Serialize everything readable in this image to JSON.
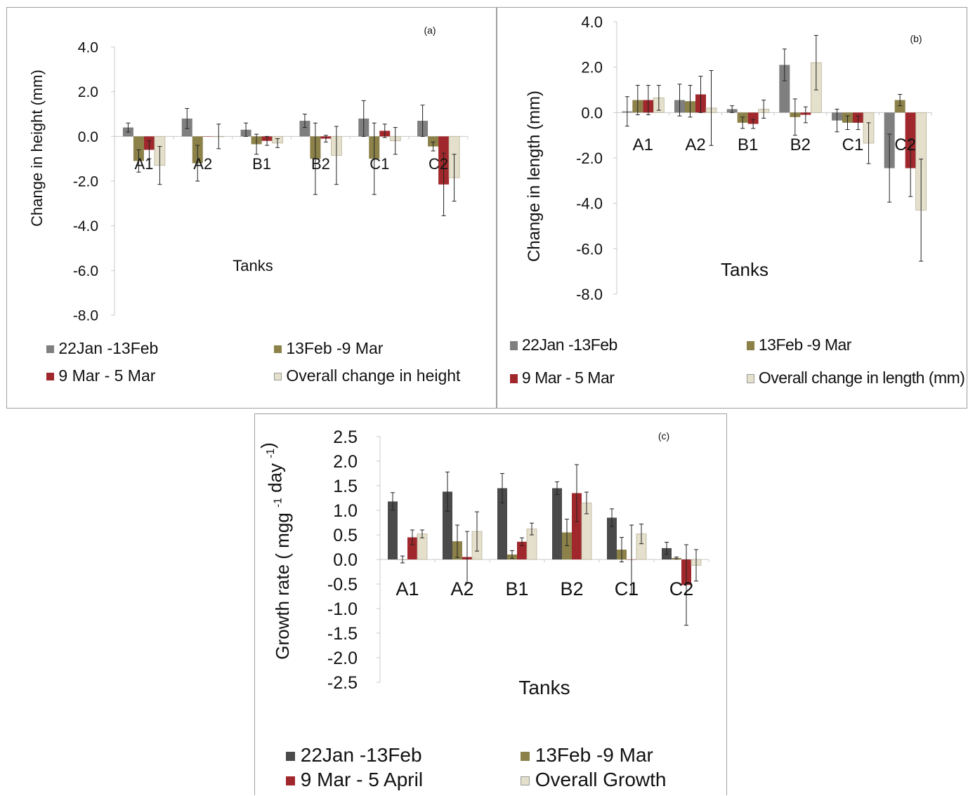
{
  "colors": {
    "s1": "#7f7f7f",
    "s2": "#8b8149",
    "s3": "#a0282c",
    "s4": "#e5e0cc",
    "s1c": "#4a4a4a"
  },
  "chart_data": [
    {
      "type": "bar",
      "panel_label": "(a)",
      "categories": [
        "A1",
        "A2",
        "B1",
        "B2",
        "C1",
        "C2"
      ],
      "ylabel": "Change in height (mm)",
      "xlabel": "Tanks",
      "ylim": [
        -8.0,
        4.0
      ],
      "yticks": [
        "4.0",
        "2.0",
        "0.0",
        "-2.0",
        "-4.0",
        "-6.0",
        "-8.0"
      ],
      "ytick_values": [
        4,
        2,
        0,
        -2,
        -4,
        -6,
        -8
      ],
      "series": [
        {
          "name": "22Jan -13Feb",
          "values": [
            0.4,
            0.8,
            0.3,
            0.7,
            0.8,
            0.7
          ],
          "errors": [
            0.2,
            0.45,
            0.3,
            0.3,
            0.8,
            0.7
          ]
        },
        {
          "name": "13Feb -9 Mar",
          "values": [
            -1.1,
            -1.2,
            -0.35,
            -1.0,
            -1.0,
            -0.45
          ],
          "errors": [
            0.5,
            0.8,
            0.45,
            1.6,
            1.6,
            0.2
          ]
        },
        {
          "name": "9 Mar - 5 Mar",
          "values": [
            -0.6,
            0.0,
            -0.2,
            -0.1,
            0.25,
            -2.15
          ],
          "errors": [
            0.4,
            0.0,
            0.2,
            0.15,
            0.3,
            1.4
          ]
        },
        {
          "name": "Overall change in height",
          "values": [
            -1.3,
            0.0,
            -0.3,
            -0.85,
            -0.2,
            -1.85
          ],
          "errors": [
            0.85,
            0.55,
            0.2,
            1.3,
            0.6,
            1.05
          ]
        }
      ],
      "legend": [
        "22Jan -13Feb",
        "13Feb -9 Mar",
        "9 Mar - 5 Mar",
        "Overall change in height"
      ]
    },
    {
      "type": "bar",
      "panel_label": "(b)",
      "categories": [
        "A1",
        "A2",
        "B1",
        "B2",
        "C1",
        "C2"
      ],
      "ylabel": "Change in length (mm)",
      "xlabel": "Tanks",
      "ylim": [
        -8.0,
        4.0
      ],
      "yticks": [
        "4.0",
        "2.0",
        "0.0",
        "-2.0",
        "-4.0",
        "-6.0",
        "-8.0"
      ],
      "ytick_values": [
        4,
        2,
        0,
        -2,
        -4,
        -6,
        -8
      ],
      "series": [
        {
          "name": "22Jan -13Feb",
          "values": [
            0.05,
            0.55,
            0.15,
            2.1,
            -0.35,
            -2.45
          ],
          "errors": [
            0.65,
            0.7,
            0.15,
            0.7,
            0.5,
            1.5
          ]
        },
        {
          "name": "13Feb -9 Mar",
          "values": [
            0.55,
            0.5,
            -0.45,
            -0.2,
            -0.45,
            0.55
          ],
          "errors": [
            0.65,
            0.7,
            0.25,
            0.8,
            0.3,
            0.25
          ]
        },
        {
          "name": "9 Mar - 5 Mar",
          "values": [
            0.55,
            0.8,
            -0.5,
            -0.1,
            -0.45,
            -2.45
          ],
          "errors": [
            0.65,
            0.8,
            0.2,
            0.35,
            0.3,
            1.25
          ]
        },
        {
          "name": "Overall change in length (mm)",
          "values": [
            0.65,
            0.2,
            0.15,
            2.2,
            -1.35,
            -4.3
          ],
          "errors": [
            0.55,
            1.65,
            0.4,
            1.2,
            0.9,
            2.25
          ]
        }
      ],
      "legend": [
        "22Jan -13Feb",
        "13Feb -9 Mar",
        "9 Mar - 5 Mar",
        "Overall change in length (mm)"
      ]
    },
    {
      "type": "bar",
      "panel_label": "(c)",
      "categories": [
        "A1",
        "A2",
        "B1",
        "B2",
        "C1",
        "C2"
      ],
      "ylabel": "Growth rate ( mgg ",
      "ylabel_sup1": "-1",
      "ylabel_mid": " day ",
      "ylabel_sup2": "-1",
      "ylabel_end": ")",
      "xlabel": "Tanks",
      "ylim": [
        -2.5,
        2.5
      ],
      "yticks": [
        "2.5",
        "2.0",
        "1.5",
        "1.0",
        "0.5",
        "0.0",
        "-0.5",
        "-1.0",
        "-1.5",
        "-2.0",
        "-2.5"
      ],
      "ytick_values": [
        2.5,
        2.0,
        1.5,
        1.0,
        0.5,
        0.0,
        -0.5,
        -1.0,
        -1.5,
        -2.0,
        -2.5
      ],
      "series": [
        {
          "name": "22Jan -13Feb",
          "values": [
            1.18,
            1.38,
            1.45,
            1.45,
            0.85,
            0.23
          ],
          "errors": [
            0.18,
            0.4,
            0.3,
            0.13,
            0.18,
            0.12
          ]
        },
        {
          "name": "13Feb -9 Mar",
          "values": [
            0.0,
            0.37,
            0.1,
            0.55,
            0.2,
            0.03
          ],
          "errors": [
            0.07,
            0.33,
            0.08,
            0.27,
            0.25,
            0.02
          ]
        },
        {
          "name": "9 Mar - 5  April",
          "values": [
            0.45,
            0.05,
            0.36,
            1.35,
            0.0,
            -0.52
          ],
          "errors": [
            0.15,
            0.52,
            0.08,
            0.58,
            0.7,
            0.82
          ]
        },
        {
          "name": "Overall Growth",
          "values": [
            0.52,
            0.57,
            0.62,
            1.15,
            0.52,
            -0.12
          ],
          "errors": [
            0.08,
            0.4,
            0.12,
            0.22,
            0.2,
            0.32
          ]
        }
      ],
      "legend": [
        "22Jan -13Feb",
        "13Feb -9 Mar",
        "9 Mar - 5  April",
        "Overall Growth"
      ]
    }
  ]
}
